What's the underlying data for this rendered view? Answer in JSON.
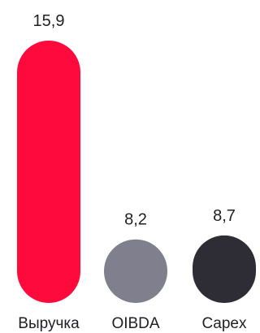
{
  "chart_data": {
    "type": "bar",
    "categories": [
      "Выручка",
      "OIBDA",
      "Capex"
    ],
    "values": [
      15.9,
      8.2,
      8.7
    ],
    "value_labels": [
      "15,9",
      "8,2",
      "8,7"
    ],
    "colors": [
      "#ff0a3c",
      "#807f8d",
      "#2e2d35"
    ],
    "title": "",
    "xlabel": "",
    "ylabel": "",
    "grid": false,
    "legend": "none"
  }
}
